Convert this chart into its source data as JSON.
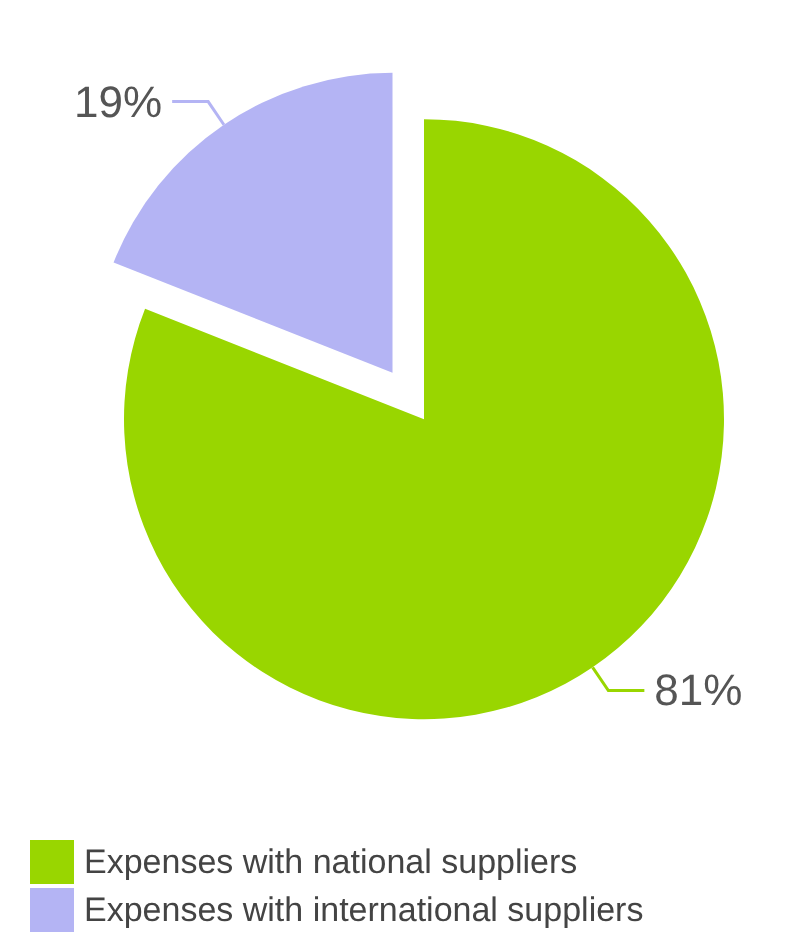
{
  "chart_data": {
    "type": "pie",
    "categories": [
      "Expenses with national suppliers",
      "Expenses with international suppliers"
    ],
    "values": [
      81,
      19
    ],
    "colors": [
      "#99d600",
      "#b4b4f4"
    ],
    "value_labels": [
      "81%",
      "19%"
    ],
    "legend": "bottom left"
  }
}
